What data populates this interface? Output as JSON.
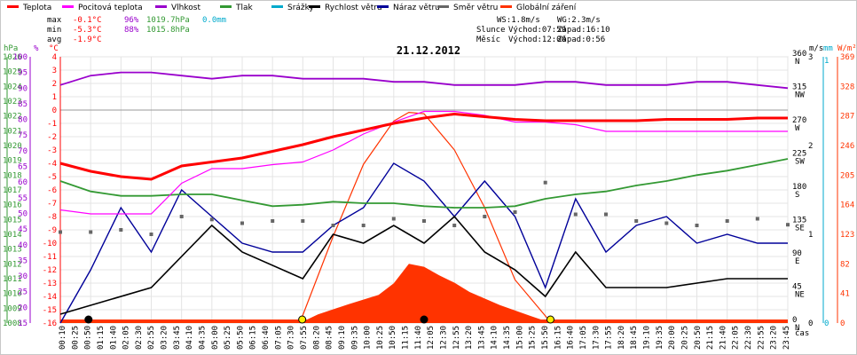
{
  "chart_data": {
    "type": "line",
    "title": "21.12.2012",
    "legend": [
      {
        "name": "Teplota",
        "color": "#ff0000"
      },
      {
        "name": "Pocitová teplota",
        "color": "#ff00ff"
      },
      {
        "name": "Vlhkost",
        "color": "#9900cc"
      },
      {
        "name": "Tlak",
        "color": "#339933"
      },
      {
        "name": "Srážky",
        "color": "#00aacc"
      },
      {
        "name": "Rychlost větru",
        "color": "#000000"
      },
      {
        "name": "Náraz větru",
        "color": "#000099"
      },
      {
        "name": "Směr větru",
        "color": "#666666"
      },
      {
        "name": "Globální záření",
        "color": "#ff3300"
      }
    ],
    "stats": {
      "max": {
        "label": "max",
        "temp": "-0.1°C",
        "hum": "96%",
        "press": "1019.7hPa",
        "rain": "0.0mm"
      },
      "min": {
        "label": "min",
        "temp": "-5.3°C",
        "hum": "88%",
        "press": "1015.8hPa"
      },
      "avg": {
        "label": "avg",
        "temp": "-1.9°C"
      }
    },
    "info": {
      "ws": "WS:1.8m/s",
      "wg": "WG:2.3m/s",
      "sun_label": "Slunce",
      "sun_rise": "Východ:07:59",
      "sun_set": "Západ:16:10",
      "moon_label": "Měsíc",
      "moon_rise": "Východ:12:00",
      "moon_set": "Západ:0:56"
    },
    "axis_units": {
      "hpa": "hPa",
      "pct": "%",
      "degc": "°C",
      "ms": "m/s",
      "mm": "mm",
      "wm2": "W/m²",
      "deg": "°",
      "time": "čas"
    },
    "axes": {
      "pressure": [
        "1026",
        "1025",
        "1024",
        "1023",
        "1022",
        "1021",
        "1020",
        "1019",
        "1018",
        "1017",
        "1016",
        "1015",
        "1014",
        "1013",
        "1012",
        "1011",
        "1010",
        "1009",
        "1008"
      ],
      "humidity": [
        "100",
        "95",
        "90",
        "85",
        "80",
        "75",
        "70",
        "65",
        "60",
        "55",
        "50",
        "45",
        "40",
        "35",
        "30",
        "25",
        "20",
        "15"
      ],
      "temperature": [
        "4",
        "3",
        "2",
        "1",
        "0",
        "-1",
        "-2",
        "-3",
        "-4",
        "-5",
        "-6",
        "-7",
        "-8",
        "-9",
        "-10",
        "-11",
        "-12",
        "-13",
        "-14",
        "-15",
        "-16"
      ],
      "direction": [
        {
          "deg": "360",
          "dir": "N"
        },
        {
          "deg": "315",
          "dir": "NW"
        },
        {
          "deg": "270",
          "dir": "W"
        },
        {
          "deg": "225",
          "dir": "SW"
        },
        {
          "deg": "180",
          "dir": "S"
        },
        {
          "deg": "135",
          "dir": "SE"
        },
        {
          "deg": "90",
          "dir": "E"
        },
        {
          "deg": "45",
          "dir": "NE"
        },
        {
          "deg": "0",
          "dir": "N"
        }
      ],
      "wind": [
        "3",
        "2",
        "1",
        "0"
      ],
      "rain": [
        "1",
        "0"
      ],
      "radiation": [
        "369",
        "328",
        "287",
        "246",
        "205",
        "164",
        "123",
        "82",
        "41",
        "0"
      ]
    },
    "x_ticks": [
      "00:10",
      "00:25",
      "00:50",
      "01:15",
      "01:40",
      "02:05",
      "02:30",
      "02:55",
      "03:20",
      "03:45",
      "04:10",
      "04:35",
      "05:00",
      "05:25",
      "05:50",
      "06:15",
      "06:40",
      "07:05",
      "07:30",
      "07:55",
      "08:20",
      "08:45",
      "09:10",
      "09:35",
      "10:00",
      "10:25",
      "10:50",
      "11:15",
      "11:40",
      "12:05",
      "12:30",
      "12:55",
      "13:20",
      "13:45",
      "14:10",
      "14:35",
      "15:00",
      "15:25",
      "15:50",
      "16:15",
      "16:40",
      "17:05",
      "17:30",
      "17:55",
      "18:20",
      "18:45",
      "19:10",
      "19:35",
      "20:00",
      "20:25",
      "20:50",
      "21:15",
      "21:40",
      "22:05",
      "22:30",
      "22:55",
      "23:20",
      "23:45"
    ],
    "series": {
      "temperature": {
        "x_hours": [
          0,
          1,
          2,
          3,
          4,
          5,
          6,
          7,
          8,
          9,
          10,
          11,
          12,
          13,
          14,
          15,
          16,
          17,
          18,
          19,
          20,
          21,
          22,
          23,
          24
        ],
        "y": [
          -4.0,
          -4.6,
          -5.0,
          -5.2,
          -4.2,
          -3.9,
          -3.6,
          -3.1,
          -2.6,
          -2.0,
          -1.5,
          -1.0,
          -0.6,
          -0.3,
          -0.5,
          -0.7,
          -0.8,
          -0.8,
          -0.8,
          -0.8,
          -0.7,
          -0.7,
          -0.7,
          -0.6,
          -0.6
        ]
      },
      "feels_like": {
        "x_hours": [
          0,
          1,
          2,
          3,
          4,
          5,
          6,
          7,
          8,
          9,
          10,
          11,
          12,
          13,
          14,
          15,
          16,
          17,
          18,
          19,
          20,
          21,
          22,
          23,
          24
        ],
        "y": [
          -7.5,
          -7.8,
          -7.8,
          -7.8,
          -5.5,
          -4.4,
          -4.4,
          -4.1,
          -3.9,
          -3.0,
          -1.8,
          -0.9,
          -0.1,
          -0.1,
          -0.4,
          -0.9,
          -0.9,
          -1.1,
          -1.6,
          -1.6,
          -1.6,
          -1.6,
          -1.6,
          -1.6,
          -1.6
        ]
      },
      "humidity": {
        "x_hours": [
          0,
          1,
          2,
          3,
          4,
          5,
          6,
          7,
          8,
          9,
          10,
          11,
          12,
          13,
          14,
          15,
          16,
          17,
          18,
          19,
          20,
          21,
          22,
          23,
          24
        ],
        "y": [
          91,
          94,
          95,
          95,
          94,
          93,
          94,
          94,
          93,
          93,
          93,
          92,
          92,
          91,
          91,
          91,
          92,
          92,
          91,
          91,
          91,
          92,
          92,
          91,
          90
        ]
      },
      "pressure": {
        "x_hours": [
          0,
          1,
          2,
          3,
          4,
          5,
          6,
          7,
          8,
          9,
          10,
          11,
          12,
          13,
          14,
          15,
          16,
          17,
          18,
          19,
          20,
          21,
          22,
          23,
          24
        ],
        "y": [
          1017.6,
          1016.9,
          1016.6,
          1016.6,
          1016.7,
          1016.7,
          1016.3,
          1015.9,
          1016.0,
          1016.2,
          1016.1,
          1016.1,
          1015.9,
          1015.8,
          1015.8,
          1015.9,
          1016.4,
          1016.7,
          1016.9,
          1017.3,
          1017.6,
          1018.0,
          1018.3,
          1018.7,
          1019.1
        ]
      },
      "radiation_wm2": {
        "x_hours": [
          7.9,
          8.5,
          9.5,
          10.5,
          11.0,
          11.5,
          12.0,
          12.5,
          13.0,
          13.5,
          14.5,
          15.5,
          16.2
        ],
        "y": [
          0,
          12,
          26,
          39,
          55,
          82,
          78,
          66,
          56,
          43,
          25,
          10,
          0
        ]
      },
      "radiation_max_wm2": {
        "x_hours": [
          7.9,
          9,
          10,
          11,
          11.5,
          12,
          13,
          14,
          15,
          16.2
        ],
        "y": [
          0,
          120,
          220,
          280,
          292,
          290,
          240,
          160,
          60,
          0
        ]
      },
      "wind_speed_ms": {
        "x_hours": [
          0,
          3,
          5,
          6,
          8,
          9,
          10,
          11,
          12,
          13,
          14,
          15,
          16,
          17,
          18,
          20,
          22,
          24
        ],
        "y": [
          0.1,
          0.4,
          1.1,
          0.8,
          0.5,
          1.0,
          0.9,
          1.1,
          0.9,
          1.2,
          0.8,
          0.6,
          0.3,
          0.8,
          0.4,
          0.4,
          0.5,
          0.5
        ]
      },
      "wind_gust_ms": {
        "x_hours": [
          0,
          1,
          2,
          3,
          4,
          5,
          6,
          7,
          8,
          9,
          10,
          11,
          12,
          13,
          14,
          15,
          16,
          17,
          18,
          19,
          20,
          21,
          22,
          23,
          24
        ],
        "y": [
          0.0,
          0.6,
          1.3,
          0.8,
          1.5,
          1.2,
          0.9,
          0.8,
          0.8,
          1.1,
          1.3,
          1.8,
          1.6,
          1.2,
          1.6,
          1.2,
          0.4,
          1.4,
          0.8,
          1.1,
          1.2,
          0.9,
          1.0,
          0.9,
          0.9
        ]
      },
      "wind_direction_deg": {
        "x_hours": [
          0,
          1,
          2,
          3,
          4,
          5,
          6,
          7,
          8,
          9,
          10,
          11,
          12,
          13,
          14,
          15,
          16,
          17,
          18,
          19,
          20,
          21,
          22,
          23,
          24
        ],
        "y": [
          123,
          123,
          126,
          120,
          144,
          140,
          135,
          138,
          138,
          132,
          132,
          141,
          138,
          132,
          144,
          150,
          190,
          147,
          147,
          138,
          135,
          132,
          138,
          141,
          133
        ]
      }
    }
  }
}
